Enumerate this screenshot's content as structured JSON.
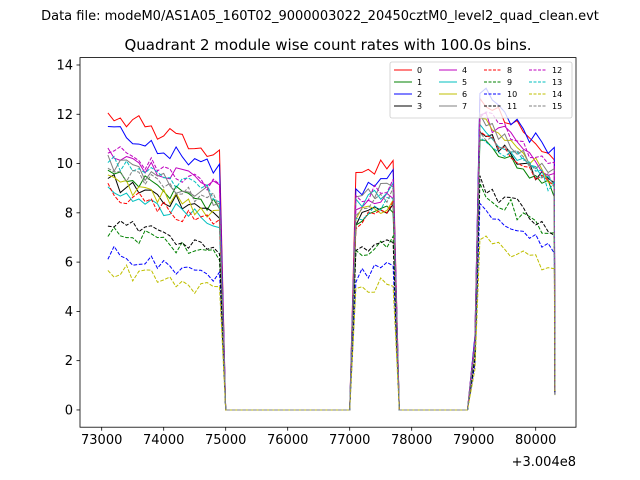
{
  "figure": {
    "suptitle": "Data file: modeM0/AS1A05_160T02_9000003022_20450cztM0_level2_quad_clean.evt",
    "title": "Quadrant 2 module wise count rates with 100.0s bins.",
    "x_offset_label": "+3.004e8"
  },
  "chart_data": {
    "type": "line",
    "title": "Quadrant 2 module wise count rates with 100.0s bins.",
    "xlabel": "",
    "ylabel": "",
    "x_offset": 300400000,
    "xlim": [
      72650,
      80650
    ],
    "ylim": [
      -0.7,
      14.3
    ],
    "xticks": [
      73000,
      74000,
      75000,
      76000,
      77000,
      78000,
      79000,
      80000
    ],
    "xtick_labels": [
      "73000",
      "74000",
      "75000",
      "76000",
      "77000",
      "78000",
      "79000",
      "80000"
    ],
    "yticks": [
      0,
      2,
      4,
      6,
      8,
      10,
      12,
      14
    ],
    "ytick_labels": [
      "0",
      "2",
      "4",
      "6",
      "8",
      "10",
      "12",
      "14"
    ],
    "bin_seconds": 100,
    "segments": [
      {
        "start": 73100,
        "end": 74900,
        "zero_after": 75000
      },
      {
        "start": 77100,
        "end": 77700,
        "zero_after": 77800
      },
      {
        "start": 79100,
        "end": 80300,
        "zero_after": 80300
      }
    ],
    "gaps_zero": [
      [
        75000,
        77000
      ],
      [
        77800,
        78900
      ]
    ],
    "legend": {
      "location": "upper right",
      "ncol": 4
    },
    "series": [
      {
        "name": "0",
        "color": "#ff0000",
        "dash": "solid",
        "levels": [
          11.2,
          10.0,
          11.9
        ]
      },
      {
        "name": "1",
        "color": "#008000",
        "dash": "solid",
        "levels": [
          9.0,
          8.1,
          10.3
        ]
      },
      {
        "name": "2",
        "color": "#0000ff",
        "dash": "solid",
        "levels": [
          10.6,
          9.4,
          12.0
        ]
      },
      {
        "name": "3",
        "color": "#000000",
        "dash": "solid",
        "levels": [
          8.6,
          8.2,
          10.5
        ]
      },
      {
        "name": "4",
        "color": "#bf00bf",
        "dash": "solid",
        "levels": [
          9.7,
          8.6,
          11.1
        ]
      },
      {
        "name": "5",
        "color": "#00bfbf",
        "dash": "solid",
        "levels": [
          8.2,
          8.8,
          10.7
        ]
      },
      {
        "name": "6",
        "color": "#bfbf00",
        "dash": "solid",
        "levels": [
          8.6,
          8.3,
          10.9
        ]
      },
      {
        "name": "7",
        "color": "#808080",
        "dash": "solid",
        "levels": [
          9.3,
          9.0,
          11.0
        ]
      },
      {
        "name": "8",
        "color": "#ff0000",
        "dash": "dashed",
        "levels": [
          8.2,
          8.0,
          10.3
        ]
      },
      {
        "name": "9",
        "color": "#008000",
        "dash": "dashed",
        "levels": [
          6.8,
          6.8,
          8.3
        ]
      },
      {
        "name": "10",
        "color": "#0000ff",
        "dash": "dashed",
        "levels": [
          5.9,
          5.8,
          7.5
        ]
      },
      {
        "name": "11",
        "color": "#000000",
        "dash": "dashed",
        "levels": [
          7.1,
          6.9,
          8.5
        ]
      },
      {
        "name": "12",
        "color": "#bf00bf",
        "dash": "dashed",
        "levels": [
          9.8,
          9.0,
          11.3
        ]
      },
      {
        "name": "13",
        "color": "#00bfbf",
        "dash": "dashed",
        "levels": [
          9.4,
          8.4,
          10.5
        ]
      },
      {
        "name": "14",
        "color": "#bfbf00",
        "dash": "dashed",
        "levels": [
          5.3,
          5.1,
          6.6
        ]
      },
      {
        "name": "15",
        "color": "#808080",
        "dash": "dashed",
        "levels": [
          9.1,
          8.6,
          10.6
        ]
      }
    ]
  }
}
